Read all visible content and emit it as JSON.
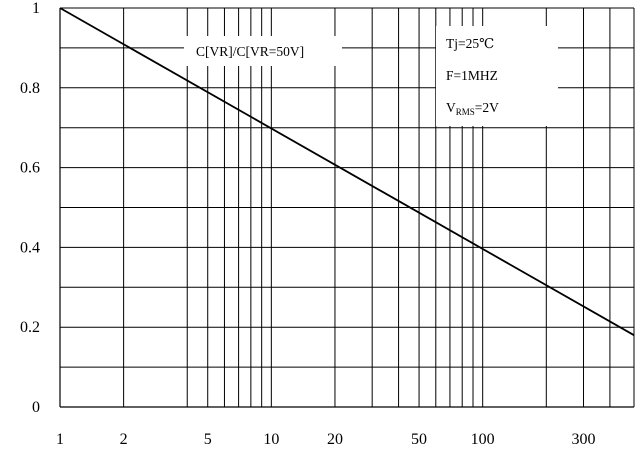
{
  "chart_data": {
    "type": "line",
    "title": "",
    "xlabel": "",
    "ylabel": "",
    "x_scale": "log",
    "xlim": [
      1,
      520
    ],
    "ylim": [
      0,
      1
    ],
    "grid": true,
    "x_ticks": [
      {
        "value": 1,
        "label": "1"
      },
      {
        "value": 2,
        "label": "2"
      },
      {
        "value": 5,
        "label": "5"
      },
      {
        "value": 10,
        "label": "10"
      },
      {
        "value": 20,
        "label": "20"
      },
      {
        "value": 50,
        "label": "50"
      },
      {
        "value": 100,
        "label": "100"
      },
      {
        "value": 300,
        "label": "300"
      }
    ],
    "x_gridlines": [
      2,
      4,
      5,
      6,
      7,
      8,
      9,
      10,
      20,
      30,
      40,
      50,
      60,
      70,
      80,
      90,
      100,
      200,
      300,
      400,
      520
    ],
    "y_ticks": [
      {
        "value": 0,
        "label": "0"
      },
      {
        "value": 0.2,
        "label": "0.2"
      },
      {
        "value": 0.4,
        "label": "0.4"
      },
      {
        "value": 0.6,
        "label": "0.6"
      },
      {
        "value": 0.8,
        "label": "0.8"
      },
      {
        "value": 1,
        "label": "1"
      }
    ],
    "y_gridlines": [
      0.1,
      0.2,
      0.3,
      0.4,
      0.5,
      0.6,
      0.7,
      0.8,
      0.9,
      1.0
    ],
    "series": [
      {
        "name": "",
        "color": "#000000",
        "x": [
          1,
          2,
          5,
          10,
          20,
          40,
          50,
          100,
          200,
          300,
          520
        ],
        "y": [
          1.0,
          0.888,
          0.742,
          0.631,
          0.52,
          0.5,
          0.371,
          0.409,
          0.298,
          0.233,
          0.18
        ]
      }
    ],
    "annotations": {
      "curve_label": "C[VR]/C[VR=50V]",
      "conditions": [
        "Tj=25℃",
        "F=1MHZ"
      ],
      "vrms_prefix": "V",
      "vrms_subscript": "RMS",
      "vrms_suffix": "=2V"
    }
  }
}
